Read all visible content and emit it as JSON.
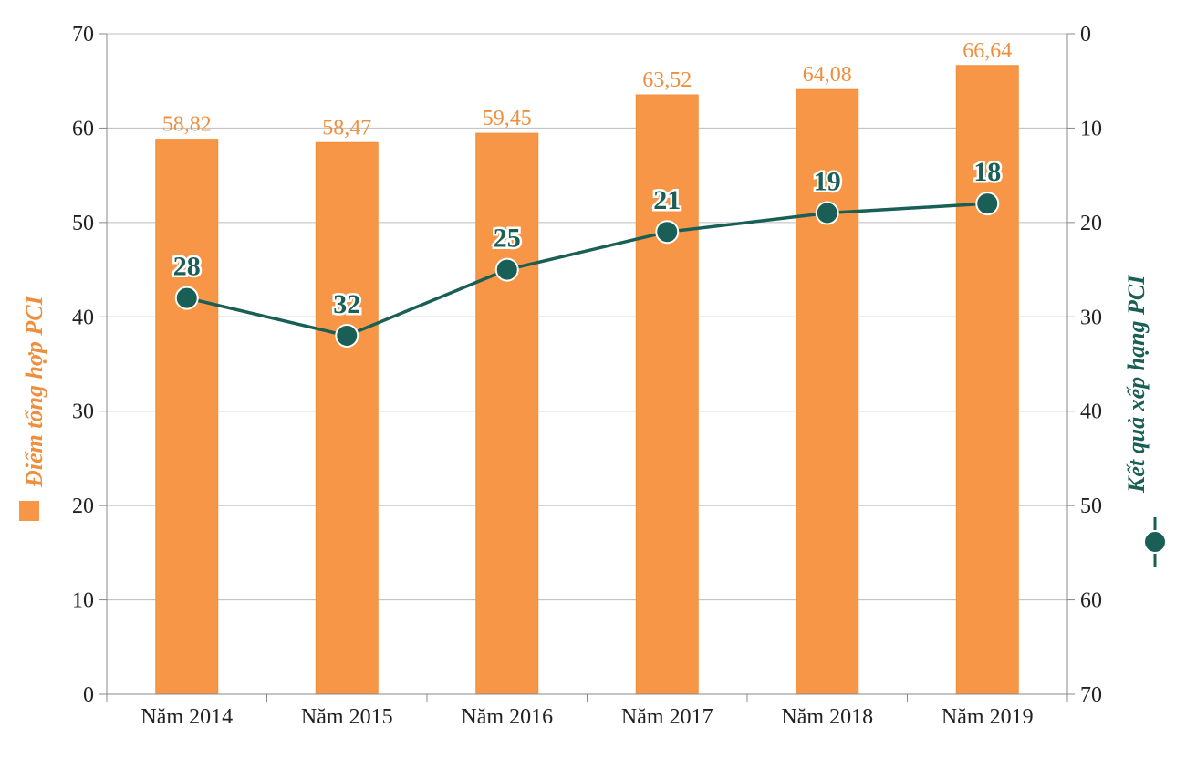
{
  "chart_data": {
    "type": "bar",
    "categories": [
      "Năm 2014",
      "Năm 2015",
      "Năm 2016",
      "Năm 2017",
      "Năm 2018",
      "Năm 2019"
    ],
    "series": [
      {
        "name": "Điểm tổng hợp PCI",
        "type": "bar",
        "axis": "left",
        "values": [
          58.82,
          58.47,
          59.45,
          63.52,
          64.08,
          66.64
        ],
        "labels": [
          "58,82",
          "58,47",
          "59,45",
          "63,52",
          "64,08",
          "66,64"
        ],
        "color": "#f79646"
      },
      {
        "name": "Kết quả xếp hạng PCI",
        "type": "line",
        "axis": "right",
        "values": [
          28,
          32,
          25,
          21,
          19,
          18
        ],
        "labels": [
          "28",
          "32",
          "25",
          "21",
          "19",
          "18"
        ],
        "color": "#1a5f55"
      }
    ],
    "ylim_left": [
      0,
      70
    ],
    "yticks_left": [
      "0",
      "10",
      "20",
      "30",
      "40",
      "50",
      "60",
      "70"
    ],
    "ylim_right": [
      0,
      70
    ],
    "right_axis_inverted": true,
    "yticks_right": [
      "0",
      "10",
      "20",
      "30",
      "40",
      "50",
      "60",
      "70"
    ],
    "ylabel_left": "Điểm tổng hợp PCI",
    "ylabel_right": "Kết quả xếp hạng PCI",
    "grid": true
  }
}
